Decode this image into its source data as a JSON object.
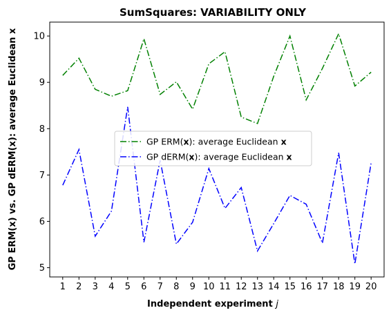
{
  "chart_data": {
    "type": "line",
    "title": "SumSquares: VARIABILITY ONLY",
    "xlabel_main": "Independent experiment ",
    "xlabel_var": "j",
    "ylabel": "GP ERM(x) vs. GP dERM(x): average Euclidean x",
    "x": [
      1,
      2,
      3,
      4,
      5,
      6,
      7,
      8,
      9,
      10,
      11,
      12,
      13,
      14,
      15,
      16,
      17,
      18,
      19,
      20
    ],
    "x_ticks": [
      "1",
      "2",
      "3",
      "4",
      "5",
      "6",
      "7",
      "8",
      "9",
      "10",
      "11",
      "12",
      "13",
      "14",
      "15",
      "16",
      "17",
      "18",
      "19",
      "20"
    ],
    "y_ticks": [
      "5",
      "6",
      "7",
      "8",
      "9",
      "10"
    ],
    "ylim": [
      4.8,
      10.3
    ],
    "xlim": [
      0.2,
      20.8
    ],
    "legend_position": "center-left",
    "series": [
      {
        "label_pre": "GP ERM(",
        "label_bold": "x",
        "label_mid": "): average Euclidean ",
        "label_bold2": "x",
        "color": "#008000",
        "values": [
          9.15,
          9.52,
          8.85,
          8.7,
          8.82,
          9.94,
          8.74,
          9.01,
          8.42,
          9.4,
          9.66,
          8.25,
          8.11,
          9.13,
          10.0,
          8.62,
          9.3,
          10.05,
          8.92,
          9.22
        ]
      },
      {
        "label_pre": "GP dERM(",
        "label_bold": "x",
        "label_mid": "): average Euclidean ",
        "label_bold2": "x",
        "color": "#0000ff",
        "values": [
          6.78,
          7.55,
          5.68,
          6.22,
          8.47,
          5.55,
          7.32,
          5.51,
          5.98,
          7.14,
          6.28,
          6.73,
          5.36,
          5.95,
          6.56,
          6.37,
          5.53,
          7.48,
          5.08,
          7.26
        ]
      }
    ]
  }
}
